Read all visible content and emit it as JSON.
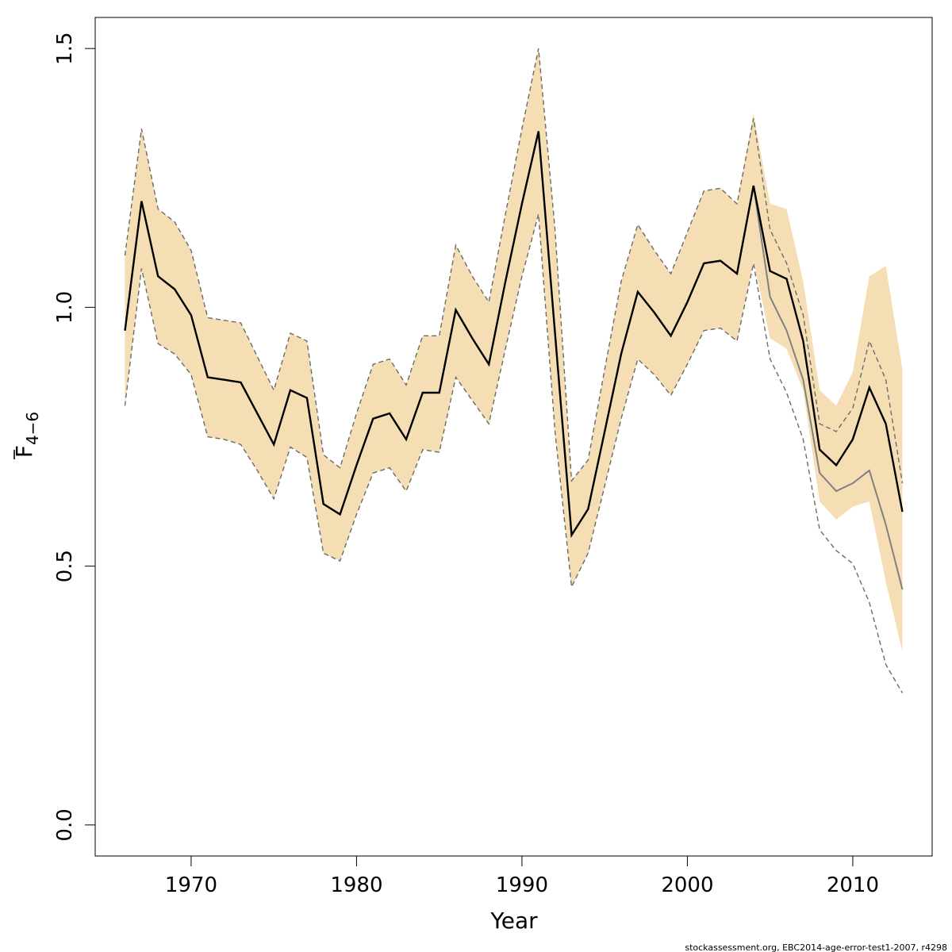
{
  "colors": {
    "band": "#f5deb3",
    "retro_line": "#000000",
    "base_line": "#808080",
    "dashed": "#6b6b6b",
    "frame": "#000000"
  },
  "chart_data": {
    "type": "line",
    "xlabel": "Year",
    "ylabel_main": "F",
    "ylabel_sub": "4−6",
    "xlim": [
      1964.2,
      2014.8
    ],
    "ylim": [
      -0.06,
      1.56
    ],
    "x_ticks": [
      1970,
      1980,
      1990,
      2000,
      2010
    ],
    "y_ticks": [
      0.0,
      0.5,
      1.0,
      1.5
    ],
    "y_tick_labels": [
      "0.0",
      "0.5",
      "1.0",
      "1.5"
    ],
    "grid": false,
    "x": [
      1966,
      1967,
      1968,
      1969,
      1970,
      1971,
      1972,
      1973,
      1974,
      1975,
      1976,
      1977,
      1978,
      1979,
      1980,
      1981,
      1982,
      1983,
      1984,
      1985,
      1986,
      1987,
      1988,
      1989,
      1990,
      1991,
      1992,
      1993,
      1994,
      1995,
      1996,
      1997,
      1998,
      1999,
      2000,
      2001,
      2002,
      2003,
      2004,
      2005,
      2006,
      2007,
      2008,
      2009,
      2010,
      2011,
      2012,
      2013
    ],
    "base": {
      "estimate": [
        0.955,
        1.205,
        1.06,
        1.035,
        0.985,
        0.865,
        0.86,
        0.855,
        0.795,
        0.735,
        0.84,
        0.825,
        0.62,
        0.6,
        0.695,
        0.785,
        0.795,
        0.745,
        0.835,
        0.835,
        0.995,
        0.94,
        0.89,
        1.05,
        1.2,
        1.34,
        0.95,
        0.56,
        0.61,
        0.76,
        0.91,
        1.03,
        0.99,
        0.945,
        1.01,
        1.085,
        1.09,
        1.065,
        1.235,
        1.02,
        0.955,
        0.86,
        0.68,
        0.645,
        0.66,
        0.685,
        0.58,
        0.455
      ],
      "upper": [
        1.1,
        1.345,
        1.19,
        1.165,
        1.11,
        0.98,
        0.975,
        0.97,
        0.905,
        0.84,
        0.95,
        0.935,
        0.715,
        0.69,
        0.795,
        0.89,
        0.9,
        0.85,
        0.945,
        0.945,
        1.12,
        1.06,
        1.01,
        1.18,
        1.345,
        1.5,
        1.15,
        0.665,
        0.705,
        0.88,
        1.05,
        1.16,
        1.11,
        1.065,
        1.145,
        1.225,
        1.23,
        1.2,
        1.375,
        1.2,
        1.19,
        1.05,
        0.84,
        0.81,
        0.875,
        1.06,
        1.08,
        0.88
      ],
      "lower": [
        0.81,
        1.075,
        0.93,
        0.91,
        0.87,
        0.75,
        0.745,
        0.735,
        0.685,
        0.63,
        0.73,
        0.71,
        0.525,
        0.51,
        0.6,
        0.68,
        0.69,
        0.645,
        0.725,
        0.72,
        0.865,
        0.82,
        0.775,
        0.92,
        1.06,
        1.18,
        0.76,
        0.46,
        0.525,
        0.655,
        0.785,
        0.9,
        0.87,
        0.83,
        0.89,
        0.955,
        0.96,
        0.935,
        1.09,
        0.94,
        0.92,
        0.84,
        0.625,
        0.59,
        0.615,
        0.625,
        0.47,
        0.335
      ]
    },
    "retro_2013": {
      "from_year": 2004,
      "estimate": [
        1.235,
        1.07,
        1.055,
        0.935,
        0.725,
        0.695,
        0.745,
        0.845,
        0.775,
        0.605
      ],
      "upper": [
        1.365,
        1.15,
        1.085,
        0.985,
        0.775,
        0.76,
        0.805,
        0.935,
        0.86,
        0.66
      ]
    },
    "retro_dashed_lower_tail": {
      "from_year": 2004,
      "values": [
        1.085,
        0.9,
        0.835,
        0.745,
        0.57,
        0.53,
        0.505,
        0.43,
        0.31,
        0.255
      ]
    }
  },
  "footer": "stockassessment.org, EBC2014-age-error-test1-2007, r4298"
}
